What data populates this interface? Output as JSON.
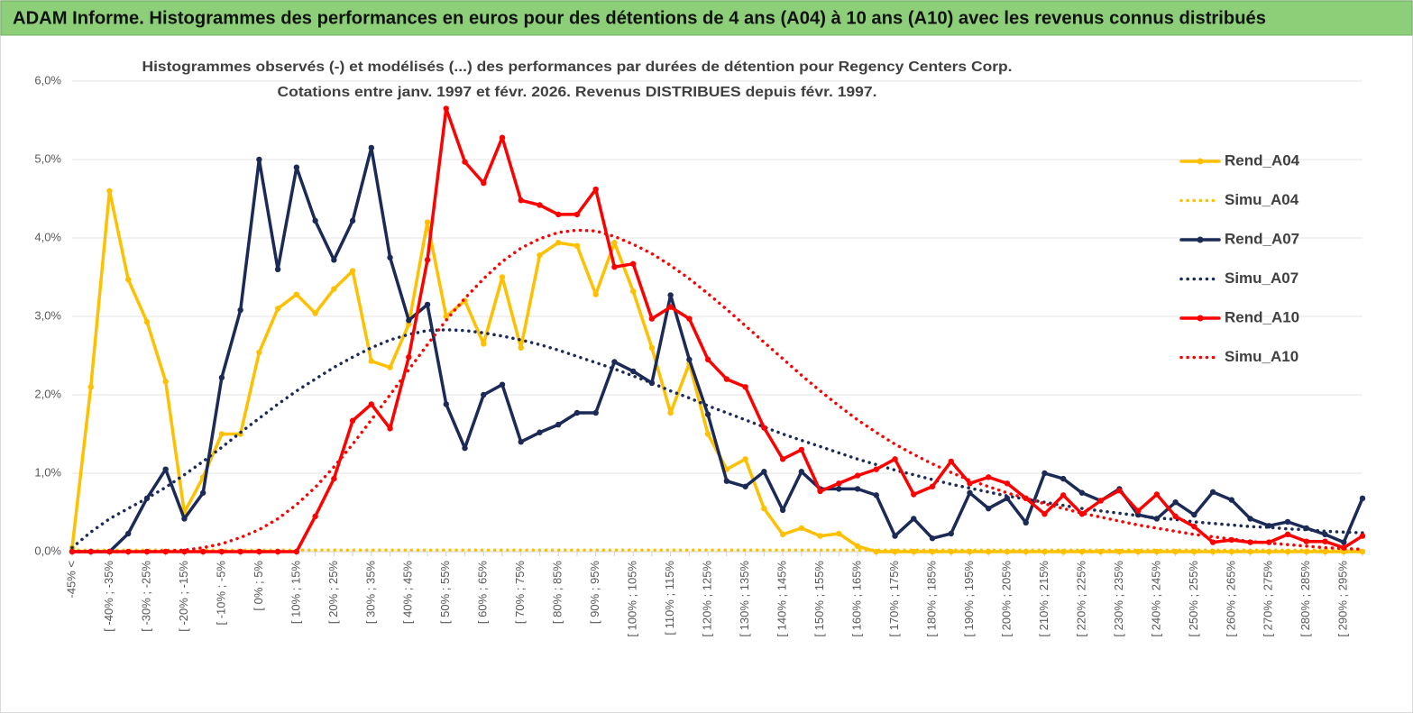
{
  "header": {
    "title": "ADAM Informe. Histogrammes des performances en euros pour des détentions de 4 ans (A04) à 10 ans (A10) avec les revenus connus distribués"
  },
  "chart_data": {
    "type": "line",
    "title": "Histogrammes observés (-) et modélisés (...)  des performances par durées de détention pour Regency  Centers Corp.",
    "subtitle": "Cotations entre janv. 1997 et févr. 2026. Revenus  DISTRIBUES depuis févr. 1997.",
    "categories": [
      "-45% <",
      null,
      "[ -40% ; -35%",
      null,
      "[ -30% ; -25%",
      null,
      "[ -20% ; -15%",
      null,
      "[ -10% ; -5%",
      null,
      "[ 0% ; 5%",
      null,
      "[ 10% ; 15%",
      null,
      "[ 20% ; 25%",
      null,
      "[ 30% ; 35%",
      null,
      "[ 40% ; 45%",
      null,
      "[ 50% ; 55%",
      null,
      "[ 60% ; 65%",
      null,
      "[ 70% ; 75%",
      null,
      "[ 80% ; 85%",
      null,
      "[ 90% ; 95%",
      null,
      "[ 100% ; 105%",
      null,
      "[ 110% ; 115%",
      null,
      "[ 120% ; 125%",
      null,
      "[ 130% ; 135%",
      null,
      "[ 140% ; 145%",
      null,
      "[ 150% ; 155%",
      null,
      "[ 160% ; 165%",
      null,
      "[ 170% ; 175%",
      null,
      "[ 180% ; 185%",
      null,
      "[ 190% ; 195%",
      null,
      "[ 200% ; 205%",
      null,
      "[ 210% ; 215%",
      null,
      "[ 220% ; 225%",
      null,
      "[ 230% ; 235%",
      null,
      "[ 240% ; 245%",
      null,
      "[ 250% ; 255%",
      null,
      "[ 260% ; 265%",
      null,
      "[ 270% ; 275%",
      null,
      "[ 280% ; 285%",
      null,
      "[ 290% ; 295%",
      null
    ],
    "ylim": [
      0,
      6
    ],
    "yticks": [
      {
        "value": 0,
        "label": "0,0%"
      },
      {
        "value": 1,
        "label": "1,0%"
      },
      {
        "value": 2,
        "label": "2,0%"
      },
      {
        "value": 3,
        "label": "3,0%"
      },
      {
        "value": 4,
        "label": "4,0%"
      },
      {
        "value": 5,
        "label": "5,0%"
      },
      {
        "value": 6,
        "label": "6,0%"
      }
    ],
    "grid": true,
    "legend": "right",
    "series": [
      {
        "name": "Rend_A04",
        "color": "#ffc000",
        "line_style": "solid",
        "markers": true,
        "values": [
          0.05,
          2.1,
          4.6,
          3.47,
          2.93,
          2.17,
          0.5,
          0.95,
          1.5,
          1.5,
          2.54,
          3.1,
          3.28,
          3.04,
          3.35,
          3.58,
          2.43,
          2.35,
          2.9,
          4.2,
          3.0,
          3.2,
          2.65,
          3.5,
          2.6,
          3.78,
          3.94,
          3.9,
          3.28,
          3.94,
          3.32,
          2.6,
          1.77,
          2.4,
          1.5,
          1.05,
          1.18,
          0.55,
          0.22,
          0.3,
          0.2,
          0.23,
          0.07,
          0,
          0,
          0,
          0,
          0,
          0,
          0,
          0,
          0,
          0,
          0,
          0,
          0,
          0,
          0,
          0,
          0,
          0,
          0,
          0,
          0,
          0,
          0,
          0,
          0,
          0,
          0
        ]
      },
      {
        "name": "Simu_A04",
        "color": "#ffc000",
        "line_style": "dotted",
        "markers": false,
        "values": [
          0.02,
          0.02,
          0.02,
          0.02,
          0.02,
          0.02,
          0.02,
          0.02,
          0.02,
          0.02,
          0.02,
          0.02,
          0.02,
          0.02,
          0.02,
          0.02,
          0.02,
          0.02,
          0.02,
          0.02,
          0.02,
          0.02,
          0.02,
          0.02,
          0.02,
          0.02,
          0.02,
          0.02,
          0.02,
          0.02,
          0.02,
          0.02,
          0.02,
          0.02,
          0.02,
          0.02,
          0.02,
          0.02,
          0.02,
          0.02,
          0.02,
          0.02,
          0.02,
          0.02,
          0.02,
          0.02,
          0.02,
          0.02,
          0.02,
          0.02,
          0.02,
          0.02,
          0.02,
          0.02,
          0.02,
          0.02,
          0.02,
          0.02,
          0.02,
          0.02,
          0.02,
          0.02,
          0.02,
          0.02,
          0.02,
          0.02,
          0.02,
          0.02,
          0.02,
          0.02
        ]
      },
      {
        "name": "Rend_A07",
        "color": "#1b2a56",
        "line_style": "solid",
        "markers": true,
        "values": [
          0,
          0,
          0,
          0.23,
          0.68,
          1.05,
          0.42,
          0.75,
          2.22,
          3.08,
          5.0,
          3.6,
          4.9,
          4.22,
          3.72,
          4.22,
          5.15,
          3.75,
          2.95,
          3.15,
          1.88,
          1.32,
          2.0,
          2.13,
          1.4,
          1.52,
          1.62,
          1.77,
          1.77,
          2.42,
          2.3,
          2.15,
          3.27,
          2.45,
          1.75,
          0.9,
          0.83,
          1.02,
          0.53,
          1.02,
          0.8,
          0.8,
          0.8,
          0.72,
          0.2,
          0.42,
          0.17,
          0.23,
          0.75,
          0.55,
          0.68,
          0.37,
          1.0,
          0.93,
          0.75,
          0.65,
          0.8,
          0.47,
          0.42,
          0.63,
          0.47,
          0.76,
          0.66,
          0.42,
          0.33,
          0.38,
          0.3,
          0.22,
          0.12,
          0.68
        ]
      },
      {
        "name": "Simu_A07",
        "color": "#1b2a56",
        "line_style": "dotted",
        "markers": false,
        "values": [
          0.05,
          0.25,
          0.42,
          0.55,
          0.68,
          0.82,
          0.98,
          1.15,
          1.33,
          1.52,
          1.7,
          1.88,
          2.05,
          2.2,
          2.35,
          2.48,
          2.6,
          2.7,
          2.77,
          2.82,
          2.83,
          2.82,
          2.79,
          2.75,
          2.7,
          2.64,
          2.57,
          2.49,
          2.41,
          2.33,
          2.24,
          2.15,
          2.05,
          1.96,
          1.86,
          1.77,
          1.68,
          1.59,
          1.5,
          1.42,
          1.34,
          1.26,
          1.18,
          1.11,
          1.04,
          0.98,
          0.92,
          0.86,
          0.81,
          0.76,
          0.71,
          0.67,
          0.63,
          0.59,
          0.55,
          0.52,
          0.49,
          0.46,
          0.43,
          0.41,
          0.38,
          0.36,
          0.34,
          0.32,
          0.31,
          0.29,
          0.28,
          0.26,
          0.25,
          0.24
        ]
      },
      {
        "name": "Rend_A10",
        "color": "#ff0000",
        "line_style": "solid",
        "markers": true,
        "values": [
          0,
          0,
          0,
          0,
          0,
          0,
          0,
          0,
          0,
          0,
          0,
          0,
          0,
          0.45,
          0.93,
          1.67,
          1.88,
          1.57,
          2.48,
          3.72,
          5.65,
          4.97,
          4.7,
          5.28,
          4.48,
          4.42,
          4.3,
          4.3,
          4.62,
          3.63,
          3.67,
          2.97,
          3.12,
          2.97,
          2.45,
          2.2,
          2.1,
          1.58,
          1.18,
          1.3,
          0.77,
          0.87,
          0.97,
          1.05,
          1.18,
          0.73,
          0.83,
          1.15,
          0.87,
          0.95,
          0.87,
          0.68,
          0.48,
          0.72,
          0.48,
          0.65,
          0.78,
          0.52,
          0.73,
          0.45,
          0.32,
          0.12,
          0.15,
          0.12,
          0.12,
          0.22,
          0.13,
          0.13,
          0.05,
          0.2
        ]
      },
      {
        "name": "Simu_A10",
        "color": "#ff0000",
        "line_style": "dotted",
        "markers": false,
        "values": [
          0,
          0,
          0,
          0,
          0,
          0.01,
          0.02,
          0.05,
          0.1,
          0.18,
          0.28,
          0.42,
          0.6,
          0.82,
          1.08,
          1.37,
          1.68,
          2.0,
          2.32,
          2.64,
          2.95,
          3.23,
          3.48,
          3.7,
          3.87,
          3.99,
          4.07,
          4.1,
          4.09,
          4.02,
          3.92,
          3.8,
          3.65,
          3.48,
          3.29,
          3.09,
          2.88,
          2.67,
          2.46,
          2.25,
          2.05,
          1.86,
          1.68,
          1.52,
          1.37,
          1.24,
          1.12,
          1.01,
          0.91,
          0.83,
          0.75,
          0.68,
          0.61,
          0.55,
          0.49,
          0.44,
          0.39,
          0.34,
          0.3,
          0.26,
          0.22,
          0.19,
          0.16,
          0.13,
          0.11,
          0.09,
          0.07,
          0.05,
          0.04,
          0.03
        ]
      }
    ]
  }
}
